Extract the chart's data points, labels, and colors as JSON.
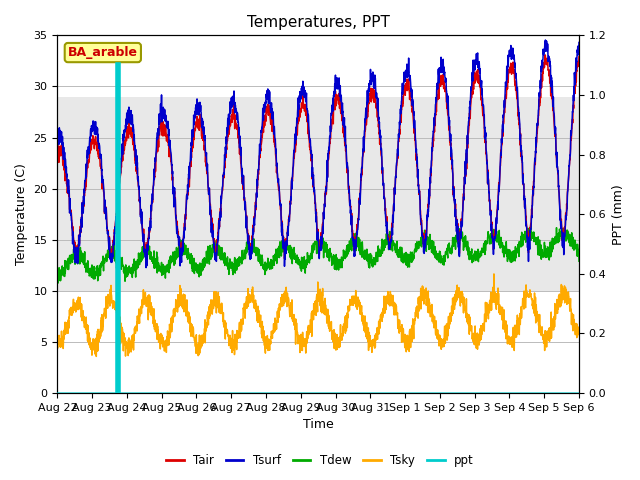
{
  "title": "Temperatures, PPT",
  "xlabel": "Time",
  "ylabel_left": "Temperature (C)",
  "ylabel_right": "PPT (mm)",
  "ylim_left": [
    0,
    35
  ],
  "ylim_right": [
    0.0,
    1.2
  ],
  "yticks_left": [
    0,
    5,
    10,
    15,
    20,
    25,
    30,
    35
  ],
  "yticks_right": [
    0.0,
    0.2,
    0.4,
    0.6,
    0.8,
    1.0,
    1.2
  ],
  "xtick_labels": [
    "Aug 22",
    "Aug 23",
    "Aug 24",
    "Aug 25",
    "Aug 26",
    "Aug 27",
    "Aug 28",
    "Aug 29",
    "Aug 30",
    "Aug 31",
    "Sep 1",
    "Sep 2",
    "Sep 3",
    "Sep 4",
    "Sep 5",
    "Sep 6"
  ],
  "colors": {
    "Tair": "#dd0000",
    "Tsurf": "#0000cc",
    "Tdew": "#00aa00",
    "Tsky": "#ffaa00",
    "ppt": "#00cccc"
  },
  "shading_ylim": [
    10,
    29
  ],
  "shading_color": "#e8e8e8",
  "ba_arable_label": "BA_arable",
  "background_color": "#ffffff",
  "grid_color": "#bbbbbb",
  "ppt_spike_day": 1.75,
  "figsize": [
    6.4,
    4.8
  ],
  "dpi": 100
}
